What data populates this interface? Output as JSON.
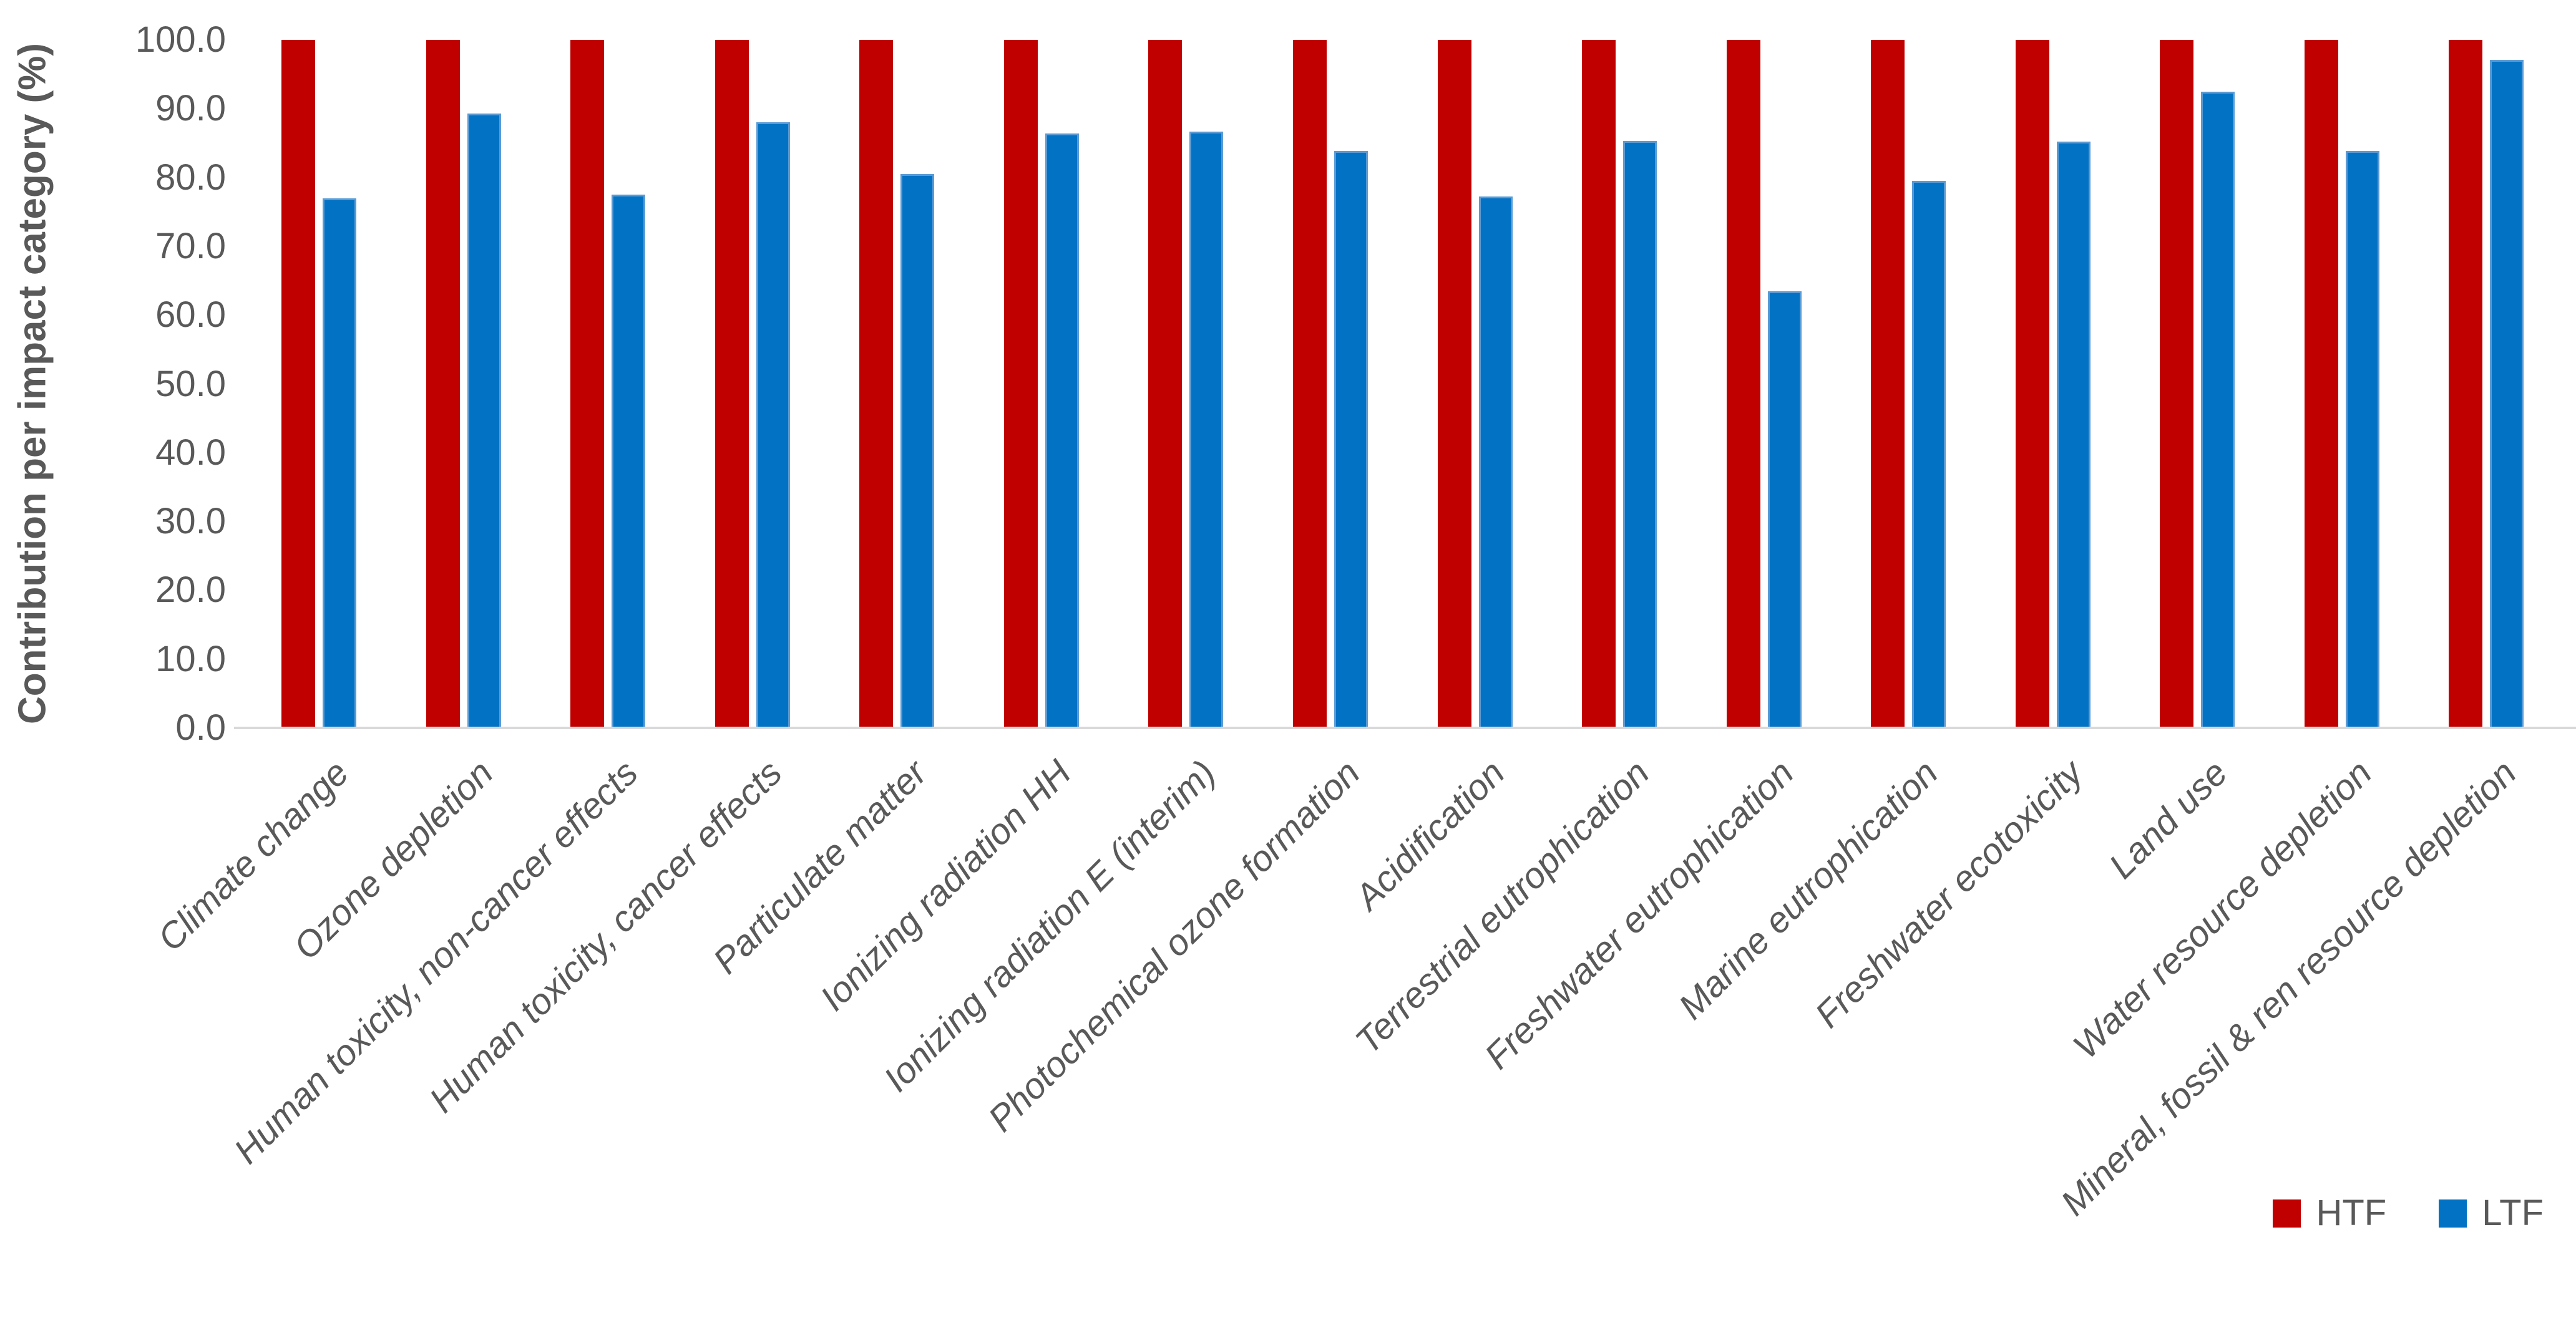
{
  "chart_data": {
    "type": "bar",
    "title": "",
    "ylabel": "Contribution per impact category (%)",
    "xlabel": "",
    "ylim": [
      0,
      100
    ],
    "yticks": [
      "100.0",
      "90.0",
      "80.0",
      "70.0",
      "60.0",
      "50.0",
      "40.0",
      "30.0",
      "20.0",
      "10.0",
      "0.0"
    ],
    "grid": false,
    "legend_position": "bottom-right",
    "categories": [
      "Climate change",
      "Ozone depletion",
      "Human toxicity, non-cancer effects",
      "Human toxicity, cancer effects",
      "Particulate matter",
      "Ionizing radiation HH",
      "Ionizing radiation E (interim)",
      "Photochemical ozone formation",
      "Acidification",
      "Terrestrial eutrophication",
      "Freshwater eutrophication",
      "Marine eutrophication",
      "Freshwater ecotoxicity",
      "Land use",
      "Water resource depletion",
      "Mineral, fossil & ren resource depletion"
    ],
    "series": [
      {
        "name": "HTF",
        "color": "#C00000",
        "values": [
          100,
          100,
          100,
          100,
          100,
          100,
          100,
          100,
          100,
          100,
          100,
          100,
          100,
          100,
          100,
          100
        ]
      },
      {
        "name": "LTF",
        "color": "#0172C4",
        "values": [
          77.0,
          89.3,
          77.5,
          88.0,
          80.5,
          86.4,
          86.7,
          83.9,
          77.2,
          85.3,
          63.5,
          79.5,
          85.2,
          92.5,
          83.9,
          97.1
        ]
      }
    ]
  },
  "colors": {
    "axis_line": "#D9D9D9",
    "text": "#595959",
    "ltf_border": "#5B9BD5"
  }
}
